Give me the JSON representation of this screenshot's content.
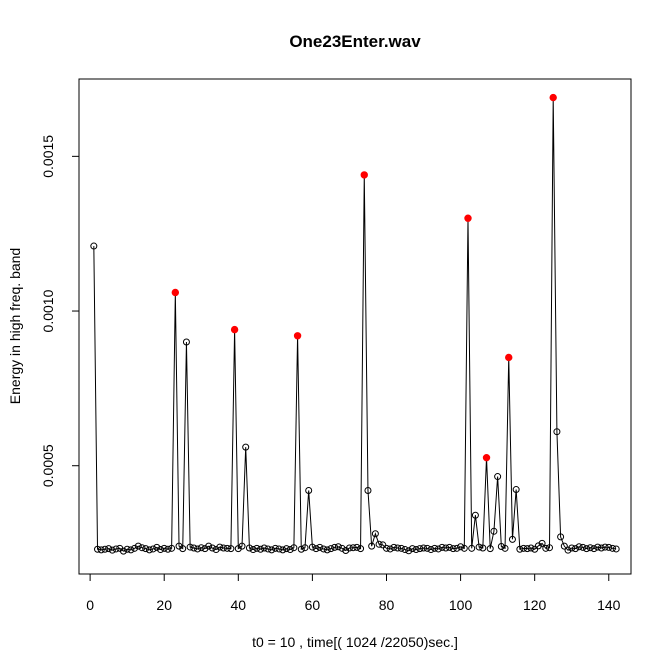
{
  "chart_data": {
    "type": "line",
    "title": "One23Enter.wav",
    "xlabel": "t0 = 10 , time[( 1024 /22050)sec.]",
    "ylabel": "Energy in high freq. band",
    "xlim": [
      -3,
      146
    ],
    "ylim": [
      0.00015,
      0.00175
    ],
    "x_ticks": [
      0,
      20,
      40,
      60,
      80,
      100,
      120,
      140
    ],
    "y_ticks": [
      0.0005,
      0.001,
      0.0015
    ],
    "y_tick_labels": [
      "0.0005",
      "0.0010",
      "0.0015"
    ],
    "grid": false,
    "line_color": "#000000",
    "peak_color": "#ff0000",
    "series": [
      {
        "x": [
          1,
          2,
          3,
          4,
          5,
          6,
          7,
          8,
          9,
          10,
          11,
          12,
          13,
          14,
          15,
          16,
          17,
          18,
          19,
          20,
          21,
          22,
          23,
          24,
          25,
          26,
          27,
          28,
          29,
          30,
          31,
          32,
          33,
          34,
          35,
          36,
          37,
          38,
          39,
          40,
          41,
          42,
          43,
          44,
          45,
          46,
          47,
          48,
          49,
          50,
          51,
          52,
          53,
          54,
          55,
          56,
          57,
          58,
          59,
          60,
          61,
          62,
          63,
          64,
          65,
          66,
          67,
          68,
          69,
          70,
          71,
          72,
          73,
          74,
          75,
          76,
          77,
          78,
          79,
          80,
          81,
          82,
          83,
          84,
          85,
          86,
          87,
          88,
          89,
          90,
          91,
          92,
          93,
          94,
          95,
          96,
          97,
          98,
          99,
          100,
          101,
          102,
          103,
          104,
          105,
          106,
          107,
          108,
          109,
          110,
          111,
          112,
          113,
          114,
          115,
          116,
          117,
          118,
          119,
          120,
          121,
          122,
          123,
          124,
          125,
          126,
          127,
          128,
          129,
          130,
          131,
          132,
          133,
          134,
          135,
          136,
          137,
          138,
          139,
          140,
          141,
          142
        ],
        "y": [
          0.00121,
          0.00023,
          0.000228,
          0.00023,
          0.000232,
          0.000227,
          0.000231,
          0.000233,
          0.000224,
          0.00023,
          0.000228,
          0.000233,
          0.00024,
          0.000235,
          0.000232,
          0.000228,
          0.000231,
          0.000236,
          0.000229,
          0.000233,
          0.00023,
          0.000233,
          0.00106,
          0.00024,
          0.000232,
          0.0009,
          0.000237,
          0.000234,
          0.000231,
          0.000235,
          0.000232,
          0.00024,
          0.000234,
          0.000229,
          0.000237,
          0.000234,
          0.000233,
          0.000232,
          0.00094,
          0.000232,
          0.00024,
          0.00056,
          0.000234,
          0.000229,
          0.000233,
          0.00023,
          0.000234,
          0.000231,
          0.000228,
          0.000233,
          0.000231,
          0.000228,
          0.000232,
          0.000229,
          0.000235,
          0.00092,
          0.00023,
          0.000235,
          0.00042,
          0.000237,
          0.000232,
          0.000236,
          0.000231,
          0.000228,
          0.000232,
          0.000236,
          0.000238,
          0.000233,
          0.000226,
          0.000234,
          0.000235,
          0.000236,
          0.000232,
          0.00144,
          0.00042,
          0.00024,
          0.00028,
          0.000246,
          0.000244,
          0.000233,
          0.000231,
          0.000236,
          0.000234,
          0.000233,
          0.000229,
          0.000225,
          0.000232,
          0.000229,
          0.000232,
          0.000234,
          0.000233,
          0.000229,
          0.000233,
          0.000231,
          0.000236,
          0.000234,
          0.000236,
          0.000232,
          0.000233,
          0.000238,
          0.000233,
          0.0013,
          0.000233,
          0.00034,
          0.000237,
          0.000234,
          0.000526,
          0.000232,
          0.000288,
          0.000465,
          0.000239,
          0.000233,
          0.00085,
          0.000262,
          0.000423,
          0.00023,
          0.000233,
          0.000232,
          0.000234,
          0.00023,
          0.000241,
          0.000249,
          0.000233,
          0.000235,
          0.00169,
          0.00061,
          0.00027,
          0.00024,
          0.000227,
          0.000234,
          0.000232,
          0.000238,
          0.000236,
          0.000232,
          0.000235,
          0.000232,
          0.000237,
          0.000234,
          0.000237,
          0.000236,
          0.000233,
          0.000231
        ],
        "peaks": [
          23,
          39,
          56,
          74,
          102,
          107,
          113,
          125
        ]
      }
    ]
  }
}
